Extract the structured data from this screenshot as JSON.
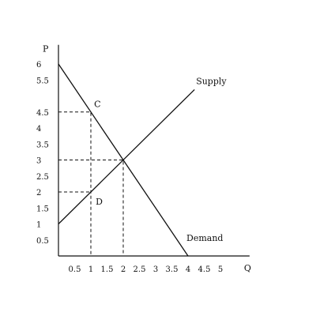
{
  "chart_data": {
    "type": "line",
    "title": "",
    "xlabel": "Q",
    "ylabel": "P",
    "xlim": [
      0,
      5.9
    ],
    "ylim": [
      0,
      6.6
    ],
    "x_ticks": [
      "0.5",
      "1",
      "1.5",
      "2",
      "2.5",
      "3",
      "3.5",
      "4",
      "4.5",
      "5"
    ],
    "y_ticks": [
      "0.5",
      "1",
      "1.5",
      "2",
      "2.5",
      "3",
      "3.5",
      "4",
      "4.5",
      "5.5",
      "6"
    ],
    "grid": false,
    "series": [
      {
        "name": "Supply",
        "points": [
          [
            0,
            1
          ],
          [
            4.2,
            5.2
          ]
        ]
      },
      {
        "name": "Demand",
        "points": [
          [
            0,
            6
          ],
          [
            4,
            0
          ]
        ]
      }
    ],
    "guides": [
      {
        "points": [
          [
            0,
            4.5
          ],
          [
            1,
            4.5
          ],
          [
            1,
            0
          ]
        ]
      },
      {
        "points": [
          [
            0,
            2
          ],
          [
            1,
            2
          ]
        ]
      },
      {
        "points": [
          [
            0,
            3
          ],
          [
            2,
            3
          ],
          [
            2,
            0
          ]
        ]
      }
    ],
    "annotations": [
      {
        "text": "C",
        "x": 1.1,
        "y": 4.75
      },
      {
        "text": "D",
        "x": 1.15,
        "y": 1.7
      }
    ]
  }
}
